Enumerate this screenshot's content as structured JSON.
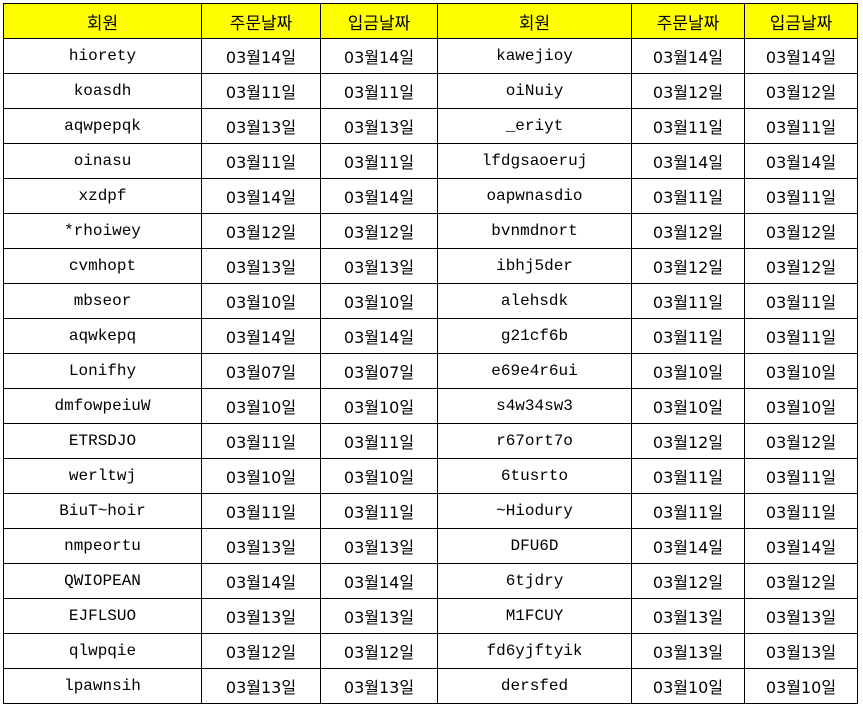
{
  "header": {
    "member": "회원",
    "order_date": "주문날짜",
    "deposit_date": "입금날짜"
  },
  "header_color": "#ffff00",
  "left_rows": [
    [
      "hiorety",
      "03월14일",
      "03월14일"
    ],
    [
      "koasdh",
      "03월11일",
      "03월11일"
    ],
    [
      "aqwpepqk",
      "03월13일",
      "03월13일"
    ],
    [
      "oinasu",
      "03월11일",
      "03월11일"
    ],
    [
      "xzdpf",
      "03월14일",
      "03월14일"
    ],
    [
      "*rhoiwey",
      "03월12일",
      "03월12일"
    ],
    [
      "cvmhopt",
      "03월13일",
      "03월13일"
    ],
    [
      "mbseor",
      "03월10일",
      "03월10일"
    ],
    [
      "aqwkepq",
      "03월14일",
      "03월14일"
    ],
    [
      "Lonifhy",
      "03월07일",
      "03월07일"
    ],
    [
      "dmfowpeiuW",
      "03월10일",
      "03월10일"
    ],
    [
      "ETRSDJO",
      "03월11일",
      "03월11일"
    ],
    [
      "werltwj",
      "03월10일",
      "03월10일"
    ],
    [
      "BiuT~hoir",
      "03월11일",
      "03월11일"
    ],
    [
      "nmpeortu",
      "03월13일",
      "03월13일"
    ],
    [
      "QWIOPEAN",
      "03월14일",
      "03월14일"
    ],
    [
      "EJFLSUO",
      "03월13일",
      "03월13일"
    ],
    [
      "qlwpqie",
      "03월12일",
      "03월12일"
    ],
    [
      "lpawnsih",
      "03월13일",
      "03월13일"
    ]
  ],
  "right_rows": [
    [
      "kawejioy",
      "03월14일",
      "03월14일"
    ],
    [
      "oiNuiy",
      "03월12일",
      "03월12일"
    ],
    [
      "_eriyt",
      "03월11일",
      "03월11일"
    ],
    [
      "lfdgsaoeruj",
      "03월14일",
      "03월14일"
    ],
    [
      "oapwnasdio",
      "03월11일",
      "03월11일"
    ],
    [
      "bvnmdnort",
      "03월12일",
      "03월12일"
    ],
    [
      "ibhj5der",
      "03월12일",
      "03월12일"
    ],
    [
      "alehsdk",
      "03월11일",
      "03월11일"
    ],
    [
      "g21cf6b",
      "03월11일",
      "03월11일"
    ],
    [
      "e69e4r6ui",
      "03월10일",
      "03월10일"
    ],
    [
      "s4w34sw3",
      "03월10일",
      "03월10일"
    ],
    [
      "r67ort7o",
      "03월12일",
      "03월12일"
    ],
    [
      "6tusrto",
      "03월11일",
      "03월11일"
    ],
    [
      "~Hiodury",
      "03월11일",
      "03월11일"
    ],
    [
      "DFU6D",
      "03월14일",
      "03월14일"
    ],
    [
      "6tjdry",
      "03월12일",
      "03월12일"
    ],
    [
      "M1FCUY",
      "03월13일",
      "03월13일"
    ],
    [
      "fd6yjftyik",
      "03월13일",
      "03월13일"
    ],
    [
      "dersfed",
      "03월10일",
      "03월10일"
    ]
  ]
}
